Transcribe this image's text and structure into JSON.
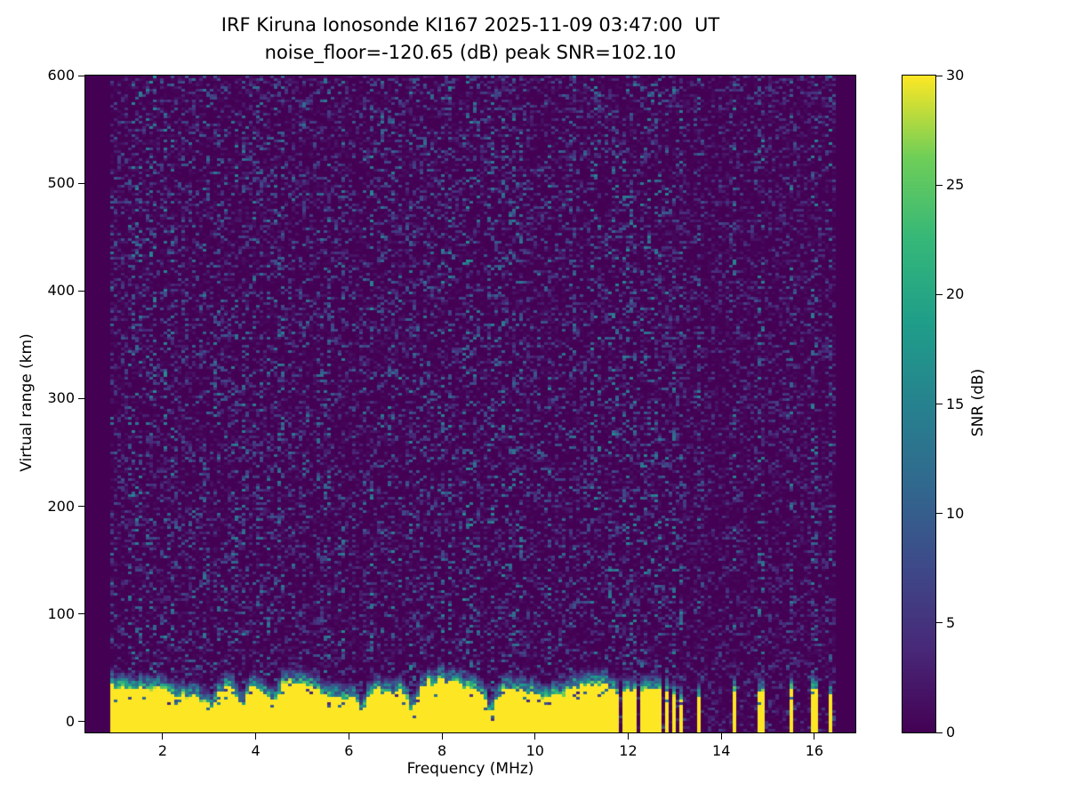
{
  "chart_data": {
    "type": "heatmap",
    "title": "IRF Kiruna Ionosonde KI167 2025-11-09 03:47:00  UT",
    "subtitle": "noise_floor=-120.65 (dB) peak SNR=102.10",
    "xlabel": "Frequency (MHz)",
    "ylabel": "Virtual range (km)",
    "colorbar_label": "SNR (dB)",
    "colormap": "viridis",
    "xlim": [
      0.34,
      16.88
    ],
    "ylim": [
      -10,
      600
    ],
    "clim": [
      0,
      30
    ],
    "x_ticks": [
      2,
      4,
      6,
      8,
      10,
      12,
      14,
      16
    ],
    "y_ticks": [
      0,
      100,
      200,
      300,
      400,
      500,
      600
    ],
    "colorbar_ticks": [
      0,
      5,
      10,
      15,
      20,
      25,
      30
    ],
    "grid": false,
    "legend": "colorbar-right",
    "data_freq_range_mhz": [
      0.9,
      16.45
    ],
    "continuous_sweep_max_mhz": 11.6,
    "sparse_stripe_freqs_mhz": [
      11.65,
      11.78,
      11.9,
      12.02,
      12.15,
      12.28,
      12.42,
      12.56,
      12.7,
      12.85,
      13.0,
      13.15,
      13.5,
      14.3,
      14.85,
      15.5,
      16.0,
      16.35
    ],
    "ground_echo_band": {
      "snr_db": 30,
      "top_km_mean": 30,
      "top_km_variation": 8,
      "fade_km": 16,
      "notch_freqs_mhz": [
        3.05,
        3.7,
        4.35,
        6.3,
        7.35,
        9.05
      ],
      "notch_depth_km": 16
    },
    "background_noise": {
      "typical_db": 2,
      "speckle_max_db": 12
    },
    "colors": {
      "cmap_low": "#440154",
      "cmap_high": "#fde725",
      "axes": "#000000",
      "background": "#ffffff"
    }
  }
}
